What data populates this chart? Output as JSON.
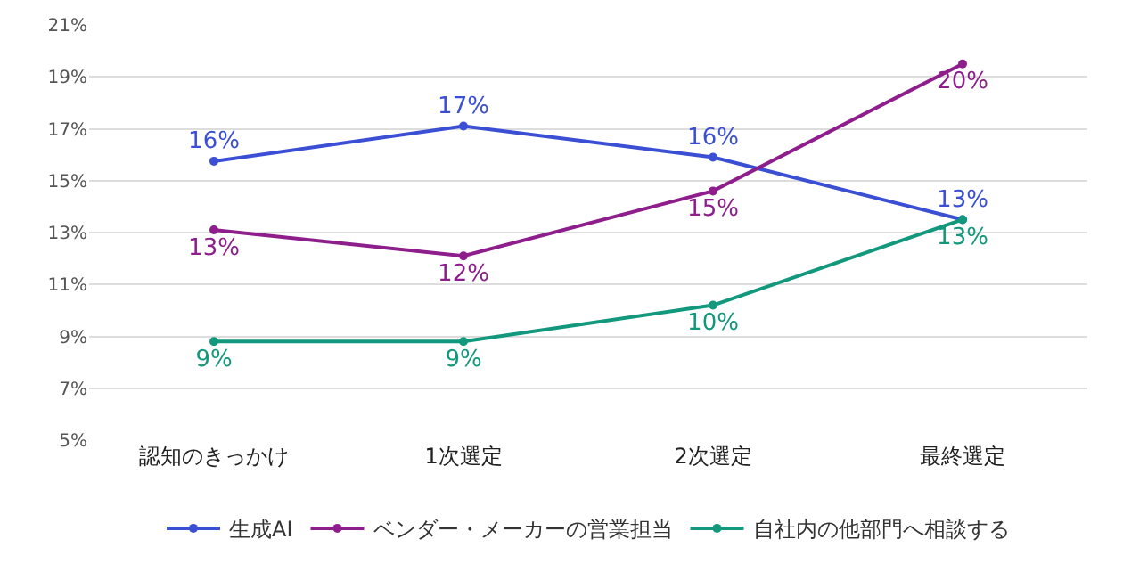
{
  "chart_data": {
    "type": "line",
    "categories": [
      "認知のきっかけ",
      "1次選定",
      "2次選定",
      "最終選定"
    ],
    "series": [
      {
        "name": "生成AI",
        "color": "#3a4fd4",
        "values": [
          15.75,
          17.1,
          15.9,
          13.5
        ],
        "value_labels": [
          "16%",
          "17%",
          "16%",
          "13%"
        ]
      },
      {
        "name": "ベンダー・メーカーの営業担当",
        "color": "#8e1e8c",
        "values": [
          13.1,
          12.1,
          14.6,
          19.5
        ],
        "value_labels": [
          "13%",
          "12%",
          "15%",
          "20%"
        ]
      },
      {
        "name": "自社内の他部門へ相談する",
        "color": "#12987c",
        "values": [
          8.8,
          8.8,
          10.2,
          13.5
        ],
        "value_labels": [
          "9%",
          "9%",
          "10%",
          "13%"
        ]
      }
    ],
    "ylim": [
      5,
      21
    ],
    "yticks": [
      {
        "value": 5,
        "label": "5%"
      },
      {
        "value": 7,
        "label": "7%"
      },
      {
        "value": 9,
        "label": "9%"
      },
      {
        "value": 11,
        "label": "11%"
      },
      {
        "value": 13,
        "label": "13%"
      },
      {
        "value": 15,
        "label": "15%"
      },
      {
        "value": 17,
        "label": "17%"
      },
      {
        "value": 19,
        "label": "19%"
      },
      {
        "value": 21,
        "label": "21%"
      }
    ],
    "grid": "y",
    "legend": "bottom",
    "marker": "circle",
    "line_style": "solid"
  }
}
